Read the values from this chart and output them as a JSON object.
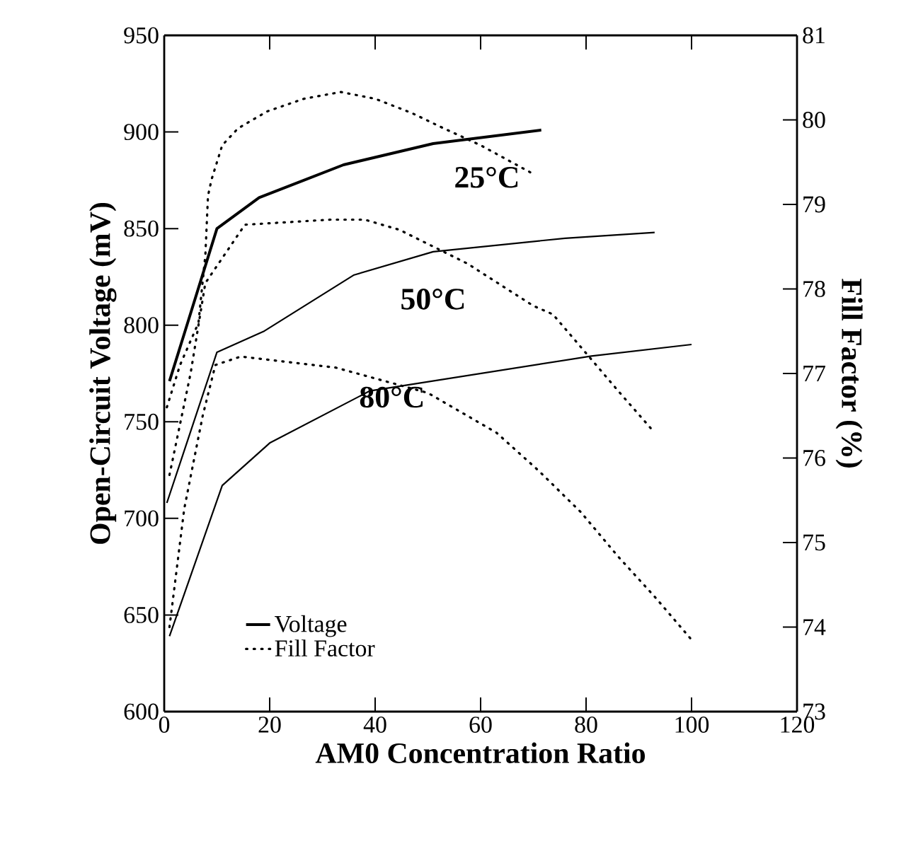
{
  "chart_data": {
    "type": "line",
    "xlabel": "AM0 Concentration Ratio",
    "ylabel": "Open-Circuit Voltage (mV)",
    "y2label": "Fill Factor (%)",
    "xlim": [
      0,
      120
    ],
    "xticks": [
      0,
      20,
      40,
      60,
      80,
      100,
      120
    ],
    "ylim": [
      600,
      950
    ],
    "yticks": [
      600,
      650,
      700,
      750,
      800,
      850,
      900,
      950
    ],
    "y2lim": [
      73,
      81
    ],
    "y2ticks": [
      73,
      74,
      75,
      76,
      77,
      78,
      79,
      80,
      81
    ],
    "legend": "bottom left",
    "grid": false,
    "series": [
      {
        "name": "Voltage",
        "color": "#000000",
        "line_style": "solid",
        "x": [
          1,
          10,
          18,
          34,
          51,
          71.5
        ],
        "values": [
          771,
          850,
          866,
          883,
          894,
          901
        ]
      },
      {
        "name": "Fill Factor",
        "color": "#000000",
        "line_style": "dotted",
        "axis": "y2",
        "x": [
          0.5,
          3,
          6.5,
          7.8,
          8.3,
          9,
          11,
          14,
          19.5,
          26.5,
          33.5,
          40,
          47,
          53,
          60,
          70
        ],
        "values": [
          76.6,
          77.1,
          77.6,
          78.4,
          79.1,
          79.3,
          79.7,
          79.9,
          80.1,
          80.25,
          80.33,
          80.25,
          80.08,
          79.9,
          79.7,
          79.36
        ]
      },
      {
        "color": "#000000",
        "line_style": "solid",
        "x": [
          0.5,
          10,
          19,
          36,
          51,
          76,
          93
        ],
        "values": [
          708,
          786,
          797,
          826,
          838,
          845,
          848
        ]
      },
      {
        "color": "#000000",
        "line_style": "dotted",
        "axis": "y2",
        "x": [
          1,
          5,
          7.8,
          15.3,
          31.5,
          38,
          44.6,
          57.5,
          70,
          73.7,
          78.5,
          86,
          93
        ],
        "values": [
          75.8,
          77.0,
          78.07,
          78.76,
          78.82,
          78.82,
          78.7,
          78.3,
          77.8,
          77.7,
          77.35,
          76.8,
          76.3
        ]
      },
      {
        "color": "#000000",
        "line_style": "solid",
        "x": [
          1,
          11,
          20,
          39,
          81,
          100
        ],
        "values": [
          639,
          717,
          739,
          766,
          784,
          790
        ]
      },
      {
        "color": "#000000",
        "line_style": "dotted",
        "axis": "y2",
        "x": [
          1,
          3.8,
          7.3,
          9.7,
          14.5,
          32.5,
          50,
          63,
          71,
          79,
          86,
          93,
          100
        ],
        "values": [
          74.0,
          75.4,
          76.5,
          77.1,
          77.2,
          77.07,
          76.77,
          76.3,
          75.85,
          75.36,
          74.84,
          74.36,
          73.85
        ]
      }
    ],
    "annotations": [
      "25°C",
      "50°C",
      "80°C"
    ]
  }
}
